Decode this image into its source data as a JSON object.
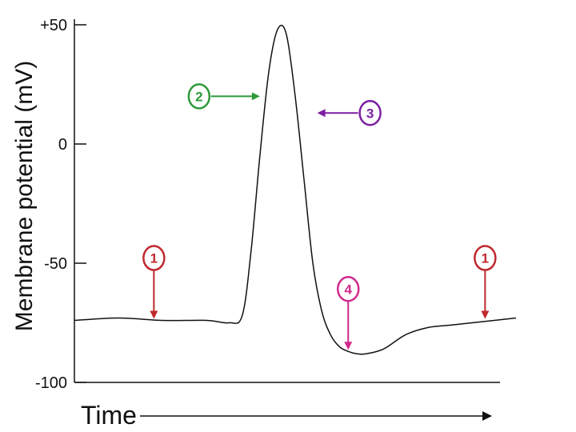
{
  "chart_data": {
    "type": "line",
    "title": "",
    "xlabel": "Time",
    "ylabel": "Membrane potential (mV)",
    "ylim": [
      -100,
      50
    ],
    "yticks": [
      {
        "value": 50,
        "label": "+50"
      },
      {
        "value": 0,
        "label": "0"
      },
      {
        "value": -50,
        "label": "-50"
      },
      {
        "value": -100,
        "label": "-100"
      }
    ],
    "grid": false,
    "series": [
      {
        "x": [
          0,
          10,
          20,
          30,
          35,
          38,
          40,
          42,
          44,
          46,
          48,
          50,
          52,
          54,
          56,
          58,
          60,
          62,
          64,
          66,
          70,
          75,
          80,
          85,
          90,
          100
        ],
        "y": [
          -74,
          -73,
          -74,
          -74,
          -75,
          -72,
          -45,
          -5,
          30,
          48,
          46,
          20,
          -15,
          -50,
          -70,
          -80,
          -85,
          -87,
          -88,
          -88,
          -86,
          -80,
          -77,
          -76,
          -75,
          -73
        ]
      }
    ],
    "annotations": [
      {
        "label": "1",
        "color": "#c0282d",
        "x": 18,
        "y": -74,
        "direction": "down"
      },
      {
        "label": "2",
        "color": "#2e9a3a",
        "x": 42,
        "y": 20,
        "direction": "right"
      },
      {
        "label": "3",
        "color": "#7a1fa2",
        "x": 55,
        "y": 13,
        "direction": "left"
      },
      {
        "label": "4",
        "color": "#d12a8c",
        "x": 62,
        "y": -87,
        "direction": "down"
      },
      {
        "label": "1",
        "color": "#c0282d",
        "x": 93,
        "y": -74,
        "direction": "down"
      }
    ]
  }
}
